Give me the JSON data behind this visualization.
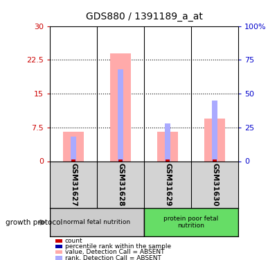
{
  "title": "GDS880 / 1391189_a_at",
  "samples": [
    "GSM31627",
    "GSM31628",
    "GSM31629",
    "GSM31630"
  ],
  "groups": [
    {
      "label": "normal fetal nutrition",
      "color": "#cccccc",
      "samples": [
        0,
        1
      ]
    },
    {
      "label": "protein poor fetal\nnutrition",
      "color": "#66dd66",
      "samples": [
        2,
        3
      ]
    }
  ],
  "group_protocol_label": "growth protocol",
  "left_yaxis": {
    "min": 0,
    "max": 30,
    "ticks": [
      0,
      7.5,
      15,
      22.5,
      30
    ],
    "color": "#cc0000"
  },
  "right_yaxis": {
    "min": 0,
    "max": 100,
    "ticks": [
      0,
      25,
      50,
      75,
      100
    ],
    "color": "#0000cc"
  },
  "pink_bars": [
    6.6,
    24.0,
    6.5,
    9.5
  ],
  "blue_bars_pct": [
    18,
    68,
    28,
    45
  ],
  "red_bar_height": 0.35,
  "legend": [
    {
      "color": "#cc0000",
      "label": "count"
    },
    {
      "color": "#0000aa",
      "label": "percentile rank within the sample"
    },
    {
      "color": "#ffaaaa",
      "label": "value, Detection Call = ABSENT"
    },
    {
      "color": "#aaaaff",
      "label": "rank, Detection Call = ABSENT"
    }
  ],
  "sample_label_bg": "#d3d3d3"
}
